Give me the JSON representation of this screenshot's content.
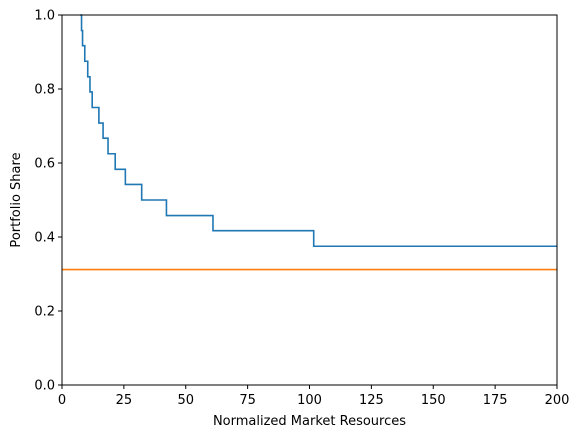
{
  "chart_data": {
    "type": "line",
    "title": "",
    "xlabel": "Normalized Market Resources",
    "ylabel": "Portfolio Share",
    "xlim": [
      0,
      200
    ],
    "ylim": [
      0,
      1.0
    ],
    "xticks": [
      0,
      25,
      50,
      75,
      100,
      125,
      150,
      175,
      200
    ],
    "yticks": [
      0.0,
      0.2,
      0.4,
      0.6,
      0.8,
      1.0
    ],
    "xtick_labels": [
      "0",
      "25",
      "50",
      "75",
      "100",
      "125",
      "150",
      "175",
      "200"
    ],
    "ytick_labels": [
      "0.0",
      "0.2",
      "0.4",
      "0.6",
      "0.8",
      "1.0"
    ],
    "grid": false,
    "series": [
      {
        "color": "#1f77b4",
        "step": true,
        "x": [
          7.3,
          7.9,
          8.3,
          8.7,
          9.2,
          9.7,
          10.4,
          11.3,
          12.2,
          13.4,
          14.9,
          16.6,
          18.6,
          21.5,
          25.6,
          32.2,
          42.2,
          61.0,
          101.7,
          200
        ],
        "y": [
          1.0,
          0.958,
          0.917,
          0.917,
          0.875,
          0.875,
          0.833,
          0.792,
          0.75,
          0.75,
          0.708,
          0.667,
          0.625,
          0.583,
          0.542,
          0.5,
          0.458,
          0.417,
          0.375,
          0.375
        ]
      },
      {
        "color": "#ff7f0e",
        "step": false,
        "x": [
          0,
          200
        ],
        "y": [
          0.312,
          0.312
        ]
      }
    ]
  }
}
